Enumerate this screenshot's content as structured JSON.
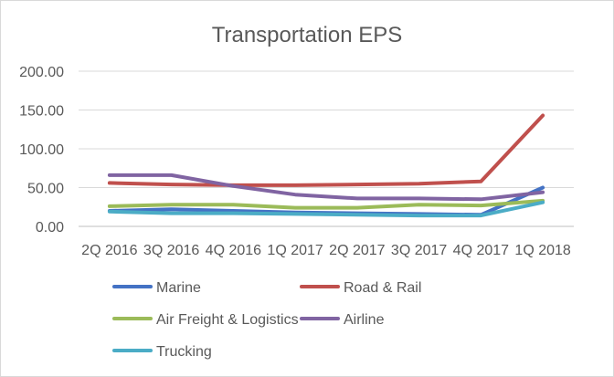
{
  "chart_data": {
    "type": "line",
    "title": "Transportation EPS",
    "xlabel": "",
    "ylabel": "",
    "categories": [
      "2Q 2016",
      "3Q 2016",
      "4Q 2016",
      "1Q 2017",
      "2Q 2017",
      "3Q 2017",
      "4Q 2017",
      "1Q 2018"
    ],
    "yticks": [
      "0.00",
      "50.00",
      "100.00",
      "150.00",
      "200.00"
    ],
    "ylim": [
      0,
      200
    ],
    "grid": true,
    "legend_position": "bottom",
    "series": [
      {
        "name": "Marine",
        "color": "#4472c4",
        "values": [
          20,
          22,
          20,
          18,
          17,
          16,
          15,
          50
        ]
      },
      {
        "name": "Road & Rail",
        "color": "#c0504d",
        "values": [
          56,
          54,
          53,
          53,
          54,
          55,
          58,
          143
        ]
      },
      {
        "name": "Air Freight & Logistics",
        "color": "#9bbb59",
        "values": [
          26,
          28,
          28,
          24,
          24,
          28,
          27,
          33
        ]
      },
      {
        "name": "Airline",
        "color": "#8064a2",
        "values": [
          66,
          66,
          52,
          41,
          36,
          36,
          35,
          44
        ]
      },
      {
        "name": "Trucking",
        "color": "#4bacc6",
        "values": [
          19,
          17,
          17,
          16,
          15,
          14,
          14,
          31
        ]
      }
    ]
  }
}
